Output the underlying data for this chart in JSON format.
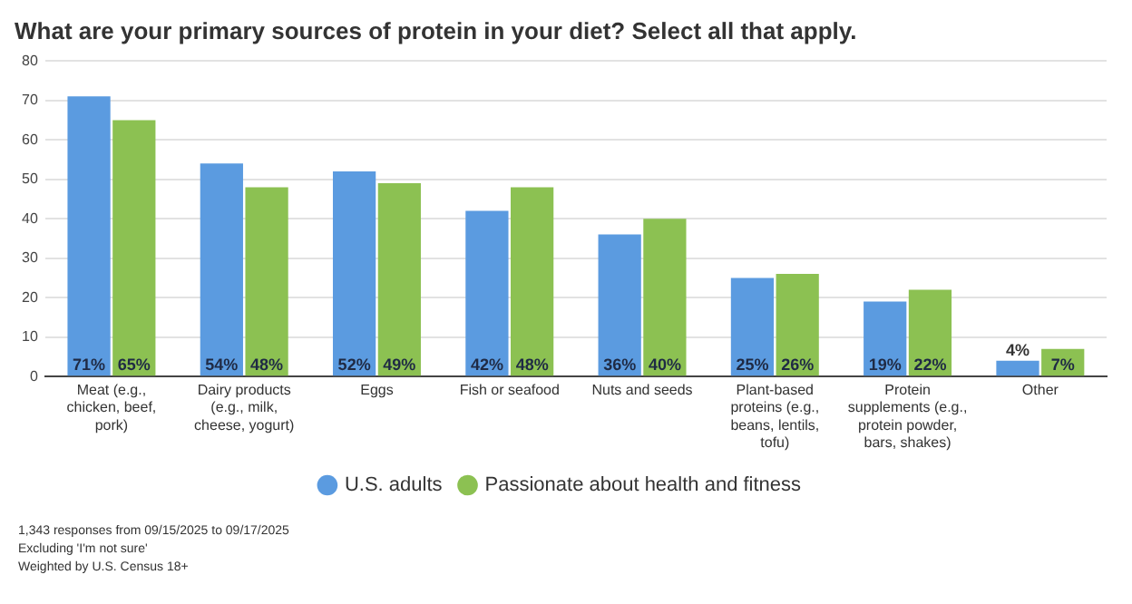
{
  "chart_data": {
    "type": "bar",
    "title": "What are your primary sources of protein in your diet? Select all that apply.",
    "categories": [
      "Meat (e.g., chicken, beef, pork)",
      "Dairy products (e.g., milk, cheese, yogurt)",
      "Eggs",
      "Fish or seafood",
      "Nuts and seeds",
      "Plant-based proteins (e.g., beans, lentils, tofu)",
      "Protein supplements (e.g., protein powder, bars, shakes)",
      "Other"
    ],
    "series": [
      {
        "name": "U.S. adults",
        "color": "#5b9be0",
        "values": [
          71,
          54,
          52,
          42,
          36,
          25,
          19,
          4
        ],
        "value_labels": [
          "71%",
          "54%",
          "52%",
          "42%",
          "36%",
          "25%",
          "19%",
          "4%"
        ]
      },
      {
        "name": "Passionate about health and fitness",
        "color": "#8cc152",
        "values": [
          65,
          48,
          49,
          48,
          40,
          26,
          22,
          7
        ],
        "value_labels": [
          "65%",
          "48%",
          "49%",
          "48%",
          "40%",
          "26%",
          "22%",
          "7%"
        ]
      }
    ],
    "ylim": [
      0,
      80
    ],
    "yticks": [
      0,
      10,
      20,
      30,
      40,
      50,
      60,
      70,
      80
    ],
    "grid": "y",
    "legend": "bottom",
    "annotations": [
      "1,343 responses from 09/15/2025 to 09/17/2025",
      "Excluding 'I'm not sure'",
      "Weighted by U.S. Census 18+"
    ]
  }
}
